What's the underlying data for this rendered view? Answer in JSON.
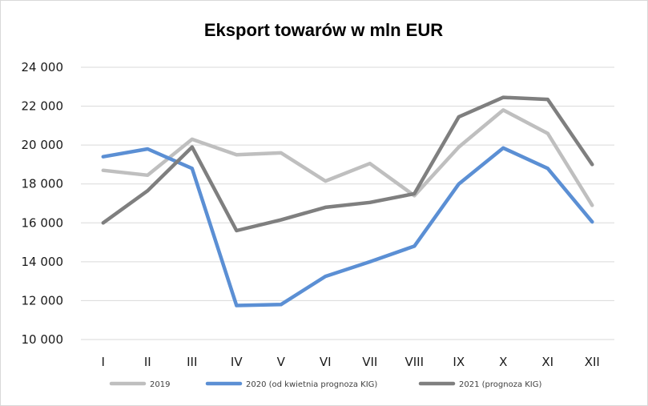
{
  "chart_data": {
    "type": "line",
    "title": "Eksport towarów w mln EUR",
    "xlabel": "",
    "ylabel": "",
    "categories": [
      "I",
      "II",
      "III",
      "IV",
      "V",
      "VI",
      "VII",
      "VIII",
      "IX",
      "X",
      "XI",
      "XII"
    ],
    "ylim": [
      10000,
      24000
    ],
    "yticks": [
      10000,
      12000,
      14000,
      16000,
      18000,
      20000,
      22000,
      24000
    ],
    "ytick_labels": [
      "10 000",
      "12 000",
      "14 000",
      "16 000",
      "18 000",
      "20 000",
      "22 000",
      "24 000"
    ],
    "grid": true,
    "legend_position": "bottom",
    "series": [
      {
        "name": "2019",
        "color": "#bfbfbf",
        "values": [
          18700,
          18450,
          20300,
          19500,
          19600,
          18150,
          19050,
          17400,
          19900,
          21800,
          20600,
          16900
        ]
      },
      {
        "name": "2020 (od kwietnia prognoza KIG)",
        "color": "#5b8fd4",
        "values": [
          19400,
          19800,
          18800,
          11750,
          11800,
          13250,
          14000,
          14800,
          18000,
          19850,
          18800,
          16050
        ]
      },
      {
        "name": "2021 (prognoza KIG)",
        "color": "#7f7f7f",
        "values": [
          16000,
          17650,
          19900,
          15600,
          16150,
          16800,
          17050,
          17500,
          21450,
          22450,
          22350,
          19000
        ]
      }
    ]
  }
}
